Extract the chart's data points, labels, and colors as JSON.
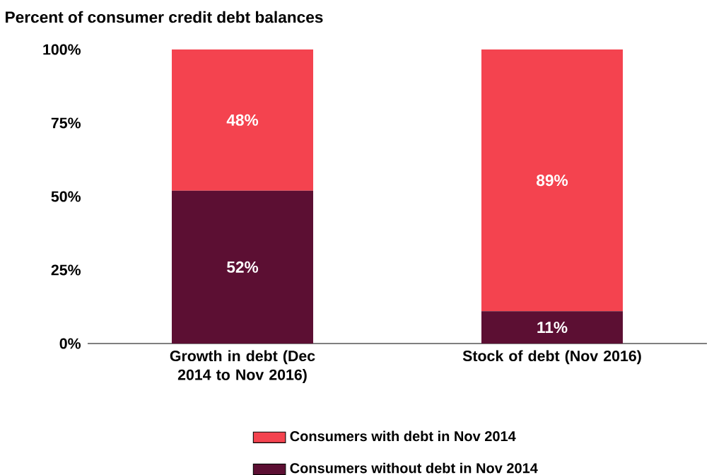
{
  "chart_data": {
    "type": "bar",
    "stacked": true,
    "title": "Percent of consumer credit debt balances",
    "categories": [
      "Growth in debt (Dec 2014 to Nov 2016)",
      "Stock of debt (Nov 2016)"
    ],
    "series": [
      {
        "name": "Consumers without debt in Nov 2014",
        "color": "#5c0f33",
        "values": [
          52,
          11
        ],
        "value_labels": [
          "52%",
          "11%"
        ]
      },
      {
        "name": "Consumers with debt in Nov 2014",
        "color": "#f4434f",
        "values": [
          48,
          89
        ],
        "value_labels": [
          "48%",
          "89%"
        ]
      }
    ],
    "ylim": [
      0,
      100
    ],
    "yticks": [
      {
        "value": 0,
        "label": "0%"
      },
      {
        "value": 25,
        "label": "25%"
      },
      {
        "value": 50,
        "label": "50%"
      },
      {
        "value": 75,
        "label": "75%"
      },
      {
        "value": 100,
        "label": "100%"
      }
    ],
    "legend": "bottom",
    "grid": false
  }
}
